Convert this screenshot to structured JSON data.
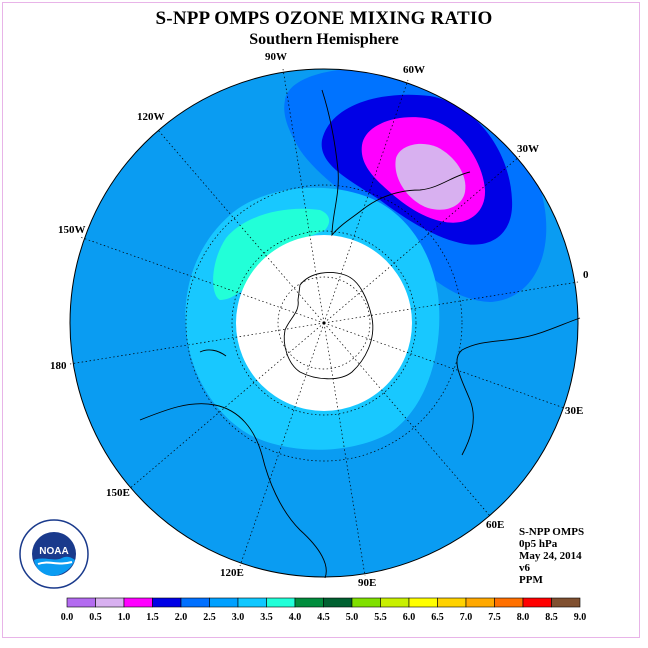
{
  "title": "S-NPP OMPS OZONE MIXING RATIO",
  "subtitle": "Southern Hemisphere",
  "longitude_labels": [
    "90W",
    "60W",
    "30W",
    "0",
    "30E",
    "60E",
    "90E",
    "120E",
    "150E",
    "180",
    "150W",
    "120W"
  ],
  "info": {
    "instrument": "S-NPP OMPS",
    "level": "0p5 hPa",
    "date": "May 24, 2014",
    "version": "v6",
    "units": "PPM"
  },
  "colorbar": {
    "ticks": [
      "0.0",
      "0.5",
      "1.0",
      "1.5",
      "2.0",
      "2.5",
      "3.0",
      "3.5",
      "4.0",
      "4.5",
      "5.0",
      "5.5",
      "6.0",
      "6.5",
      "7.0",
      "7.5",
      "8.0",
      "8.5",
      "9.0"
    ],
    "colors": [
      "#b36bf0",
      "#d8b0f0",
      "#ff00ff",
      "#0000e6",
      "#0070ff",
      "#00a0ff",
      "#10c8ff",
      "#20ffd8",
      "#008c3c",
      "#006030",
      "#80e000",
      "#c8f000",
      "#ffff00",
      "#ffd200",
      "#ffa800",
      "#ff7000",
      "#ff0000",
      "#805030"
    ]
  },
  "logo_text": "NOAA",
  "colors": {
    "background_field": "#0a9cf2",
    "polar_gap": "#ffffff",
    "frame": "#e8b4e8"
  }
}
